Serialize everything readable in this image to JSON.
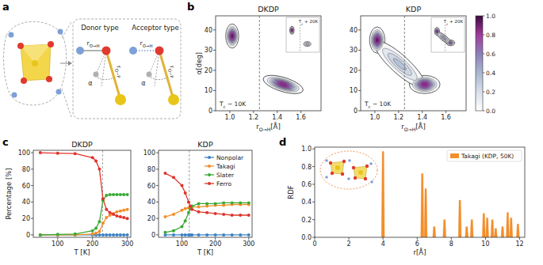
{
  "panel_labels": [
    "a",
    "b",
    "c",
    "d"
  ],
  "diagram": {
    "donor_title": "Donor type",
    "acceptor_title": "Acceptor type",
    "r_oh": {
      "main": "r",
      "sub": "O→H"
    },
    "r_op": {
      "main": "r",
      "sub": "O−P"
    },
    "alpha": "α"
  },
  "chart_data": [
    {
      "type": "contour",
      "title": "DKDP",
      "x_label": {
        "main": "r",
        "sub": "O→H",
        "tail": "[Å]"
      },
      "y_label": "α[deg]",
      "xlim": [
        0.88,
        1.77
      ],
      "ylim": [
        0,
        47
      ],
      "xticks": [
        {
          "value": 1.0,
          "label": "1.0"
        },
        1.2,
        1.4,
        1.6
      ],
      "yticks": [
        0,
        10,
        20,
        30,
        40
      ],
      "critical_x": 1.25,
      "annotation": {
        "main": "T",
        "sub": "c",
        "tail": " − 10K"
      },
      "peaks": [
        {
          "x": 1.02,
          "y": 37,
          "rx": 0.055,
          "ry": 6,
          "height": 1.0
        },
        {
          "x": 1.34,
          "y": 15,
          "x2": 1.56,
          "y2": 11,
          "width": 3.5,
          "height": 0.95
        }
      ],
      "inset": {
        "label": {
          "main": "T",
          "sub": "c",
          "tail": " + 20K"
        },
        "peaks": [
          {
            "x": 1.02,
            "y": 37,
            "rx": 0.06,
            "ry": 7,
            "height": 1.0
          },
          {
            "x": 1.45,
            "y": 13,
            "rx": 0.1,
            "ry": 4,
            "height": 0.45
          }
        ]
      }
    },
    {
      "type": "contour",
      "title": "KDP",
      "x_label": {
        "main": "r",
        "sub": "O→H",
        "tail": "[Å]"
      },
      "xlim": [
        0.88,
        1.77
      ],
      "ylim": [
        0,
        47
      ],
      "xticks": [
        {
          "value": 1.0,
          "label": "1.0"
        },
        1.2,
        1.4,
        1.6
      ],
      "yticks": [
        0,
        10,
        20,
        30,
        40
      ],
      "critical_x": 1.25,
      "annotation": {
        "main": "T",
        "sub": "c",
        "tail": " − 10K"
      },
      "peaks": [
        {
          "x": 1.02,
          "y": 35,
          "rx": 0.065,
          "ry": 6.5,
          "height": 1.0
        },
        {
          "x": 1.42,
          "y": 13,
          "rx": 0.13,
          "ry": 4.5,
          "height": 0.95
        },
        {
          "x": 1.06,
          "y": 31,
          "x2": 1.36,
          "y2": 15,
          "width": 4.5,
          "height": 0.4
        }
      ],
      "inset": {
        "label": {
          "main": "T",
          "sub": "c",
          "tail": " + 20K"
        },
        "peaks": [
          {
            "x": 1.02,
            "y": 35,
            "rx": 0.07,
            "ry": 7,
            "height": 0.9
          },
          {
            "x": 1.4,
            "y": 15,
            "rx": 0.12,
            "ry": 5,
            "height": 0.7
          },
          {
            "x": 1.08,
            "y": 30,
            "x2": 1.34,
            "y2": 17,
            "width": 5,
            "height": 0.5
          }
        ]
      },
      "colorbar": {
        "range": [
          0,
          1
        ],
        "ticks": [
          {
            "value": 0,
            "label": "0.0"
          },
          0.2,
          0.4,
          0.6,
          0.8,
          {
            "value": 1,
            "label": "1.0"
          }
        ]
      }
    },
    {
      "type": "line",
      "title": "DKDP",
      "x_label": "T [K]",
      "y_label": "Percentage [%]",
      "marker": "circle",
      "xlim": [
        30,
        310
      ],
      "ylim": [
        -3,
        103
      ],
      "xticks": [
        100,
        200,
        300
      ],
      "yticks": [
        0,
        20,
        40,
        60,
        80,
        100
      ],
      "critical_x": 229,
      "x": [
        50,
        100,
        150,
        200,
        210,
        220,
        230,
        240,
        250,
        260,
        270,
        280,
        290,
        300
      ],
      "series": [
        {
          "name": "Nonpolar",
          "color": "#3b82c4",
          "values": [
            0,
            0,
            0,
            0,
            0,
            0,
            0,
            0,
            0,
            0,
            0,
            0,
            0,
            0
          ]
        },
        {
          "name": "Takagi",
          "color": "#f28e2b",
          "values": [
            0,
            0,
            0,
            1,
            2,
            4,
            14,
            21,
            24,
            26,
            28,
            29,
            30,
            31
          ]
        },
        {
          "name": "Slater",
          "color": "#3aaa35",
          "values": [
            0,
            0.5,
            1,
            5,
            8,
            16,
            42,
            48,
            49,
            49,
            49,
            49,
            49,
            49
          ]
        },
        {
          "name": "Ferro",
          "color": "#e0332b",
          "values": [
            100,
            99.5,
            99,
            94,
            90,
            80,
            44,
            31,
            27,
            25,
            23,
            22,
            21,
            20
          ]
        }
      ]
    },
    {
      "type": "line",
      "title": "KDP",
      "x_label": "T [K]",
      "marker": "circle",
      "legend": "upper right",
      "xlim": [
        30,
        310
      ],
      "ylim": [
        -3,
        103
      ],
      "xticks": [
        100,
        200,
        300
      ],
      "yticks": [
        0,
        20,
        40,
        60,
        80,
        100
      ],
      "critical_x": 122,
      "x": [
        50,
        75,
        100,
        110,
        120,
        125,
        130,
        150,
        175,
        200,
        225,
        250,
        275,
        300
      ],
      "series": [
        {
          "name": "Nonpolar",
          "color": "#3b82c4",
          "values": [
            0,
            0,
            0,
            0,
            0,
            0,
            0,
            0,
            0,
            0,
            0,
            0,
            0,
            0
          ]
        },
        {
          "name": "Takagi",
          "color": "#f28e2b",
          "values": [
            22,
            25,
            30,
            32,
            33,
            33,
            34,
            34,
            35,
            36,
            36,
            37,
            37,
            37
          ]
        },
        {
          "name": "Slater",
          "color": "#3aaa35",
          "values": [
            3,
            5,
            10,
            17,
            27,
            32,
            35,
            38,
            38,
            38,
            39,
            39,
            39,
            39
          ]
        },
        {
          "name": "Ferro",
          "color": "#e0332b",
          "values": [
            75,
            70,
            60,
            51,
            40,
            35,
            31,
            28,
            27,
            26,
            25,
            24,
            24,
            24
          ]
        }
      ]
    },
    {
      "type": "bar",
      "x_label": "r[Å]",
      "y_label": "RDF",
      "legend": "upper right",
      "xlim": [
        0,
        12.3
      ],
      "ylim": [
        0,
        1.02
      ],
      "xticks": [
        0,
        2,
        4,
        6,
        8,
        10,
        12
      ],
      "yticks": [
        {
          "value": 0,
          "label": "0.0"
        },
        0.2,
        0.4,
        0.6,
        0.8,
        {
          "value": 1,
          "label": "1.0"
        }
      ],
      "x": [
        4.0,
        6.3,
        6.5,
        7.0,
        7.6,
        8.5,
        8.9,
        9.2,
        9.9,
        10.1,
        10.4,
        10.6,
        11.0,
        11.3,
        11.5,
        11.9
      ],
      "series": [
        {
          "name": "Takagi (KDP, 50K)",
          "color": "#f28e2b",
          "values": [
            0.97,
            0.72,
            0.55,
            0.12,
            0.2,
            0.42,
            0.12,
            0.2,
            0.27,
            0.22,
            0.2,
            0.1,
            0.12,
            0.28,
            0.22,
            0.15
          ]
        }
      ]
    }
  ]
}
